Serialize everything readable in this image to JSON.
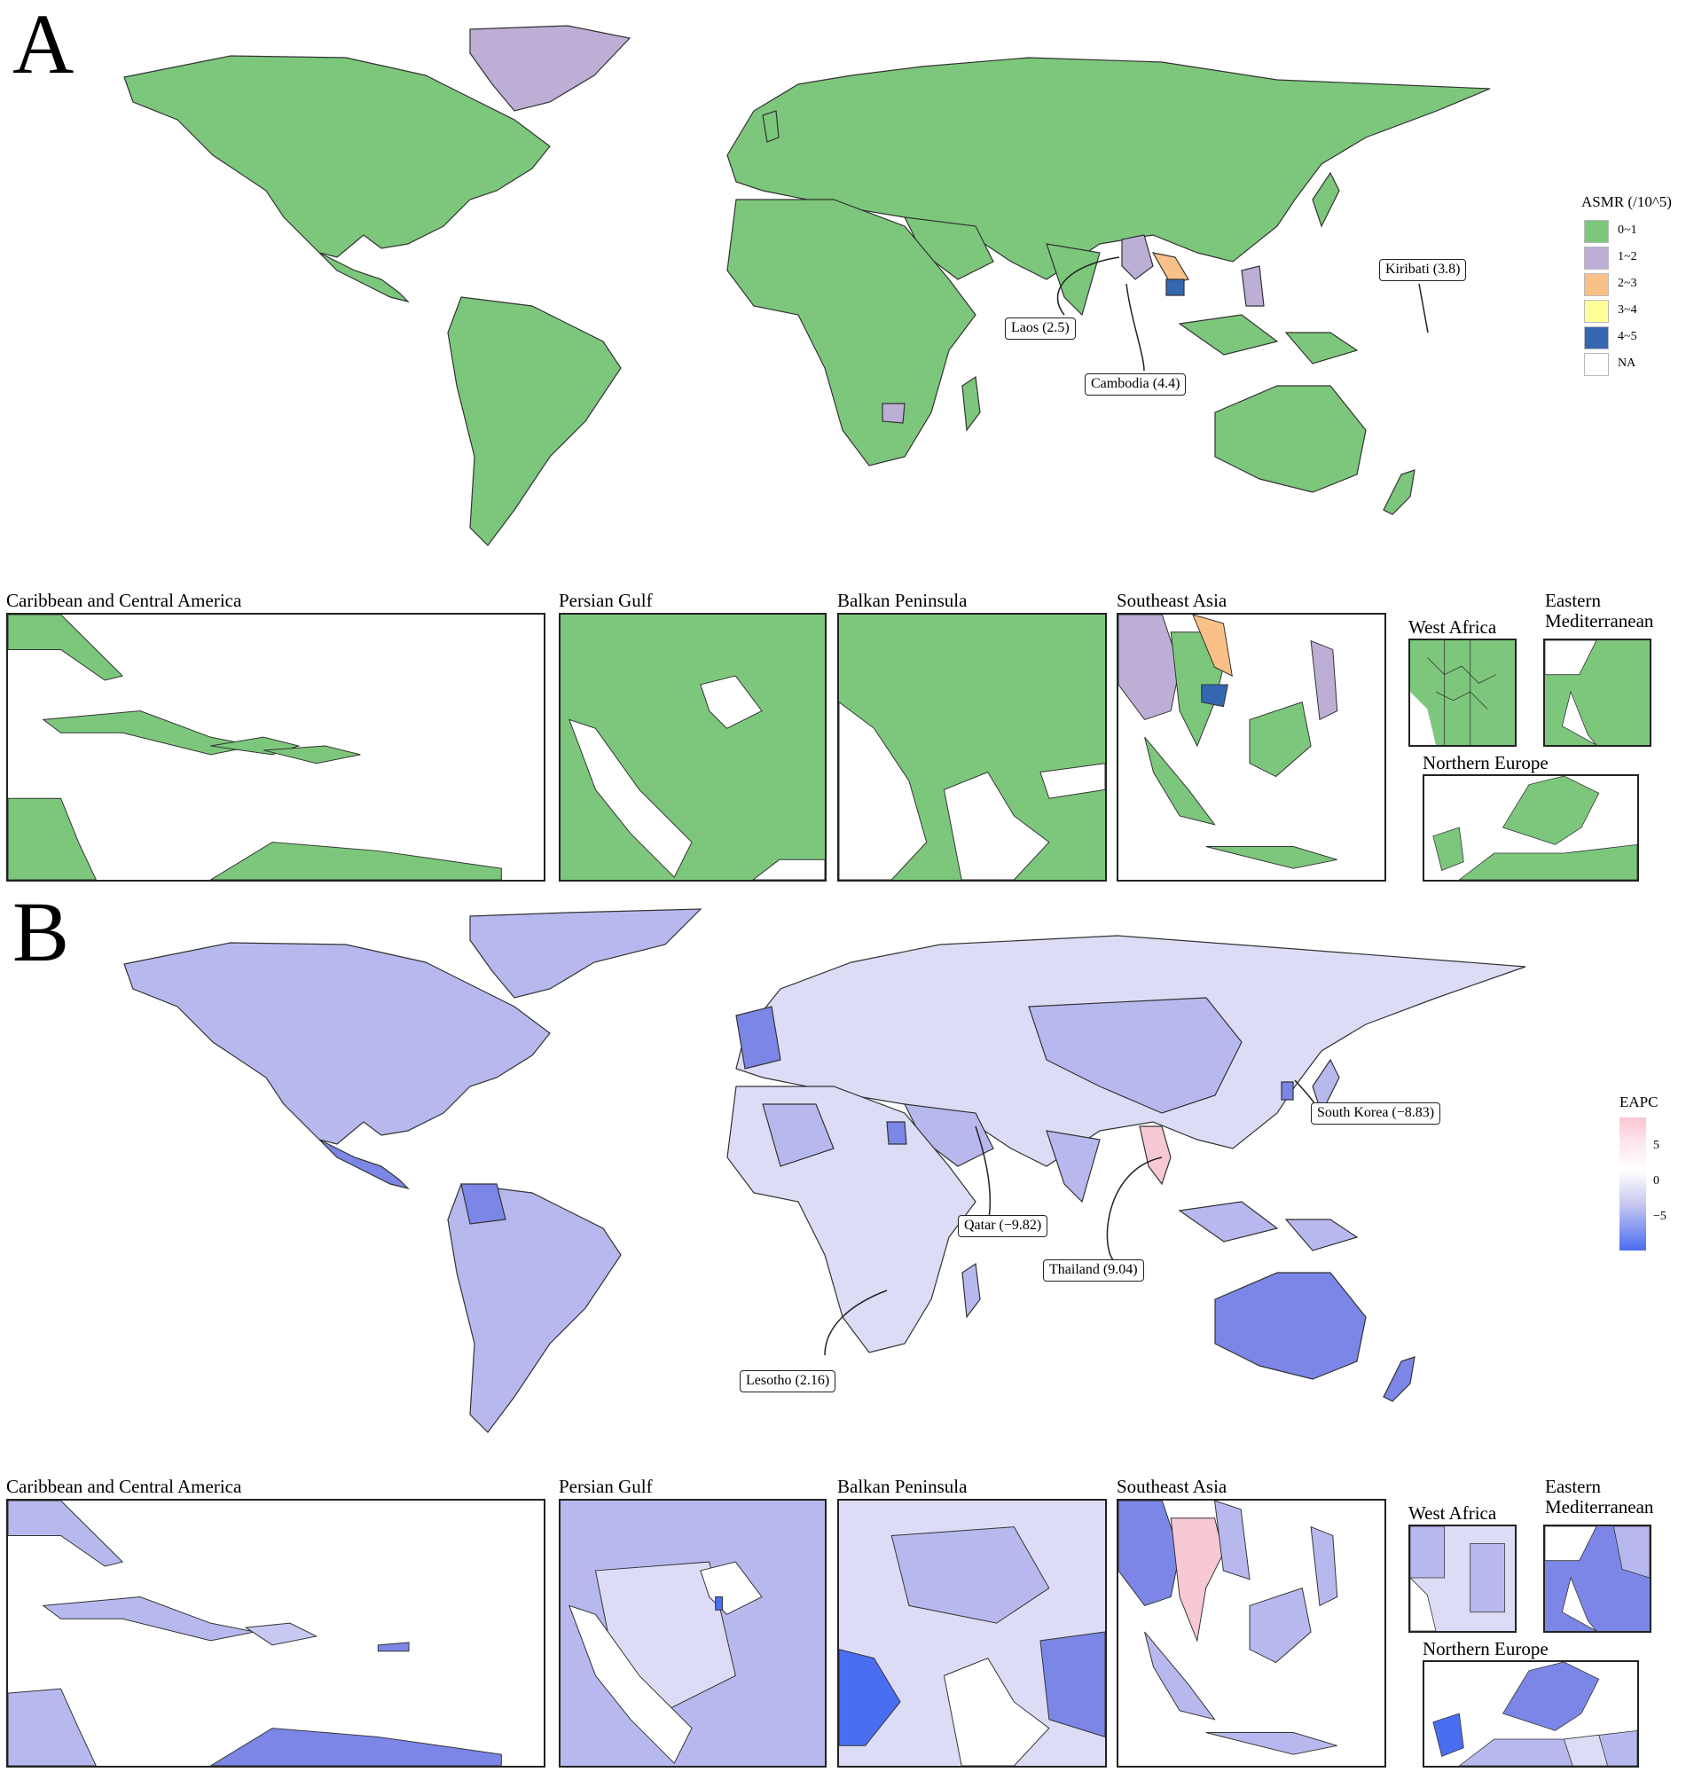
{
  "panels": [
    {
      "letter": "A",
      "legend": {
        "title": "ASMR (/10^5)",
        "items": [
          {
            "label": "0~1",
            "color": "#7cc77c"
          },
          {
            "label": "1~2",
            "color": "#bcaed5"
          },
          {
            "label": "2~3",
            "color": "#f9c088"
          },
          {
            "label": "3~4",
            "color": "#ffff99"
          },
          {
            "label": "4~5",
            "color": "#3567b0"
          },
          {
            "label": "NA",
            "color": "#ffffff"
          }
        ]
      },
      "callouts": [
        {
          "text": "Laos (2.5)"
        },
        {
          "text": "Cambodia (4.4)"
        },
        {
          "text": "Kiribati (3.8)"
        }
      ],
      "insets": [
        {
          "title": "Caribbean and Central America"
        },
        {
          "title": "Persian Gulf"
        },
        {
          "title": "Balkan Peninsula"
        },
        {
          "title": "Southeast Asia"
        },
        {
          "title": "West  Africa"
        },
        {
          "title": "Eastern\nMediterranean"
        },
        {
          "title": "Northern Europe"
        }
      ]
    },
    {
      "letter": "B",
      "legend": {
        "title": "EAPC",
        "ticks": [
          "5",
          "0",
          "−5"
        ],
        "colors": {
          "high": "#fbc5d3",
          "mid": "#ffffff",
          "low": "#4a6ef0"
        }
      },
      "callouts": [
        {
          "text": "South Korea (−8.83)"
        },
        {
          "text": "Qatar (−9.82)"
        },
        {
          "text": "Thailand (9.04)"
        },
        {
          "text": "Lesotho (2.16)"
        }
      ],
      "insets": [
        {
          "title": "Caribbean and Central America"
        },
        {
          "title": "Persian Gulf"
        },
        {
          "title": "Balkan Peninsula"
        },
        {
          "title": "Southeast Asia"
        },
        {
          "title": "West  Africa"
        },
        {
          "title": "Eastern\nMediterranean"
        },
        {
          "title": "Northern Europe"
        }
      ]
    }
  ],
  "colors": {
    "land_a": "#7cc77c",
    "land_b": "#b7b9ee",
    "land_b_light": "#dcdcf6",
    "land_b_dark": "#7c86e6",
    "purple_a": "#bcaed5",
    "orange_a": "#f9c088",
    "blue_a": "#3567b0",
    "pink_b": "#f7c9d4",
    "stroke": "#333333"
  }
}
